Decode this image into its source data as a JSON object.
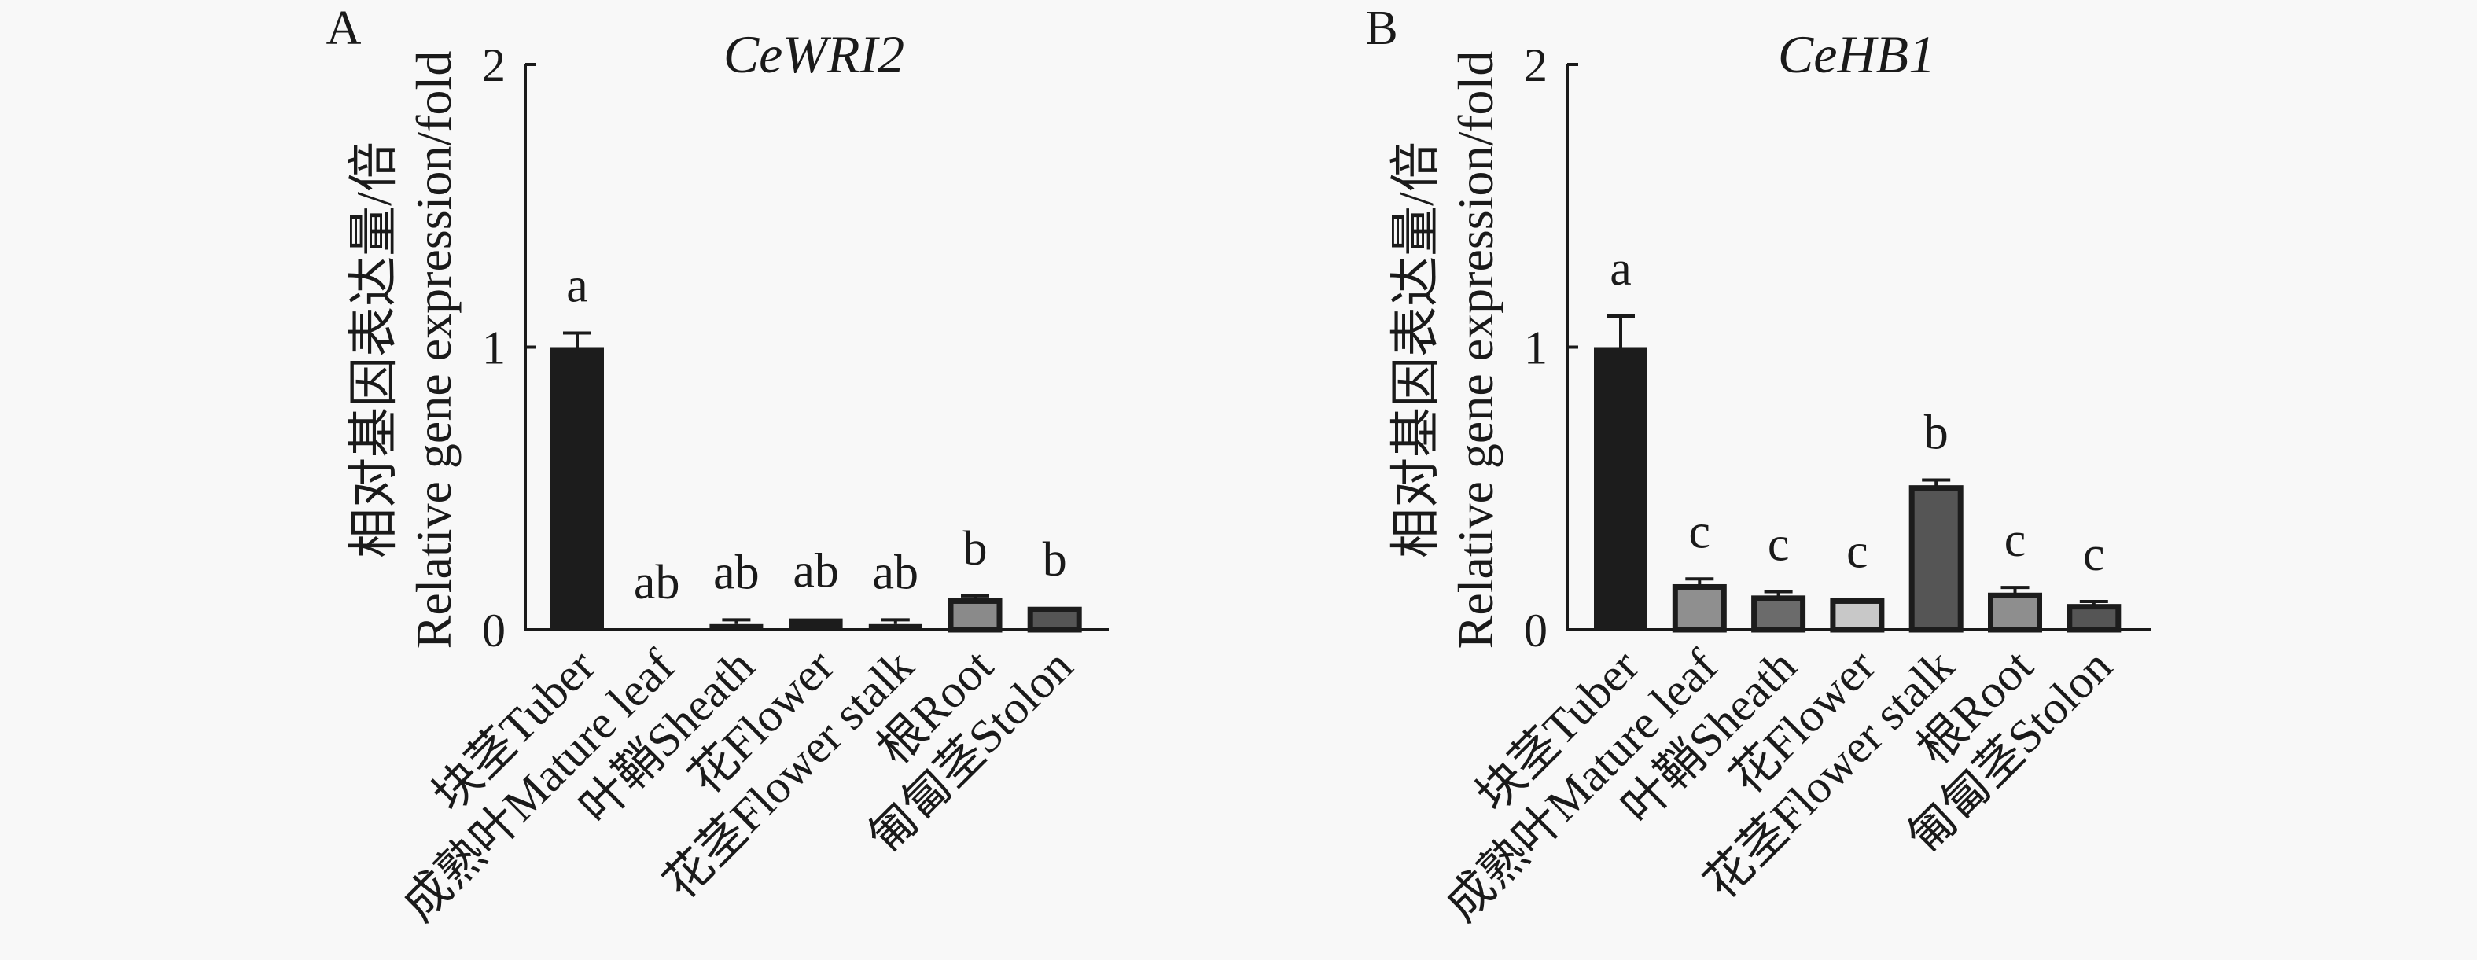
{
  "chart_data": [
    {
      "type": "bar",
      "panel_label": "A",
      "title": "CeWRI2",
      "ylabel_cn": "相对基因表达量/倍",
      "ylabel_en": "Relative gene expression/fold",
      "xlabel": "",
      "ylim": [
        0,
        2
      ],
      "yticks": [
        0,
        1,
        2
      ],
      "ytick_labels": [
        "0",
        "1",
        "2"
      ],
      "grid": false,
      "categories": [
        "块茎Tuber",
        "成熟叶Mature leaf",
        "叶鞘Sheath",
        "花Flower",
        "花茎Flower stalk",
        "根Root",
        "匍匐茎Stolon"
      ],
      "values": [
        1.0,
        0.0,
        0.02,
        0.04,
        0.02,
        0.11,
        0.08
      ],
      "errors": [
        0.05,
        0.0,
        0.015,
        0.0,
        0.015,
        0.01,
        0.0
      ],
      "significance": [
        "a",
        "ab",
        "ab",
        "ab",
        "ab",
        "b",
        "b"
      ],
      "colors": [
        "#1c1c1c",
        "#1c1c1c",
        "#1c1c1c",
        "#1c1c1c",
        "#1c1c1c",
        "#8a8a8a",
        "#555555"
      ]
    },
    {
      "type": "bar",
      "panel_label": "B",
      "title": "CeHB1",
      "ylabel_cn": "相对基因表达量/倍",
      "ylabel_en": "Relative gene expression/fold",
      "xlabel": "",
      "ylim": [
        0,
        2
      ],
      "yticks": [
        0,
        1,
        2
      ],
      "ytick_labels": [
        "0",
        "1",
        "2"
      ],
      "grid": false,
      "categories": [
        "块茎Tuber",
        "成熟叶Mature leaf",
        "叶鞘Sheath",
        "花Flower",
        "花茎Flower stalk",
        "根Root",
        "匍匐茎Stolon"
      ],
      "values": [
        1.0,
        0.16,
        0.12,
        0.11,
        0.51,
        0.13,
        0.09
      ],
      "errors": [
        0.11,
        0.02,
        0.015,
        0.0,
        0.02,
        0.02,
        0.01
      ],
      "significance": [
        "a",
        "c",
        "c",
        "c",
        "b",
        "c",
        "c"
      ],
      "colors": [
        "#1c1c1c",
        "#8f8f8f",
        "#6b6b6b",
        "#c8c8c8",
        "#555555",
        "#8e8e8e",
        "#555555"
      ]
    }
  ]
}
